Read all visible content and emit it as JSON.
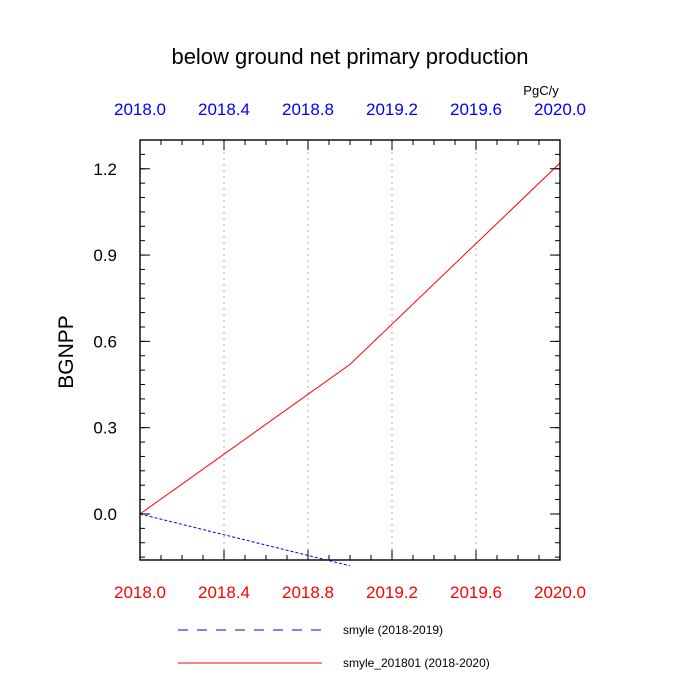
{
  "chart_data": {
    "type": "line",
    "title": "below ground net primary production",
    "units_label": "PgC/y",
    "ylabel": "BGNPP",
    "xlim": [
      2018.0,
      2020.0
    ],
    "ylim": [
      -0.16,
      1.3
    ],
    "x_ticks_bottom": [
      "2018.0",
      "2018.4",
      "2018.8",
      "2019.2",
      "2019.6",
      "2020.0"
    ],
    "x_ticks_top": [
      "2018.0",
      "2018.4",
      "2018.8",
      "2019.2",
      "2019.6",
      "2020.0"
    ],
    "y_ticks": [
      "0.0",
      "0.3",
      "0.6",
      "0.9",
      "1.2"
    ],
    "grid": "vertical dotted",
    "legend_position": "bottom",
    "colors": {
      "bottom_axis": "#ff0000",
      "top_axis": "#0000ff"
    },
    "series": [
      {
        "name": "smyle (2018-2019)",
        "color": "#0000ff",
        "style": "dashed",
        "x": [
          2018.0,
          2019.0
        ],
        "y": [
          0.0,
          -0.18
        ]
      },
      {
        "name": "smyle_201801 (2018-2020)",
        "color": "#ff0000",
        "style": "solid",
        "x": [
          2018.0,
          2019.0,
          2020.0
        ],
        "y": [
          0.0,
          0.52,
          1.22
        ]
      }
    ]
  }
}
